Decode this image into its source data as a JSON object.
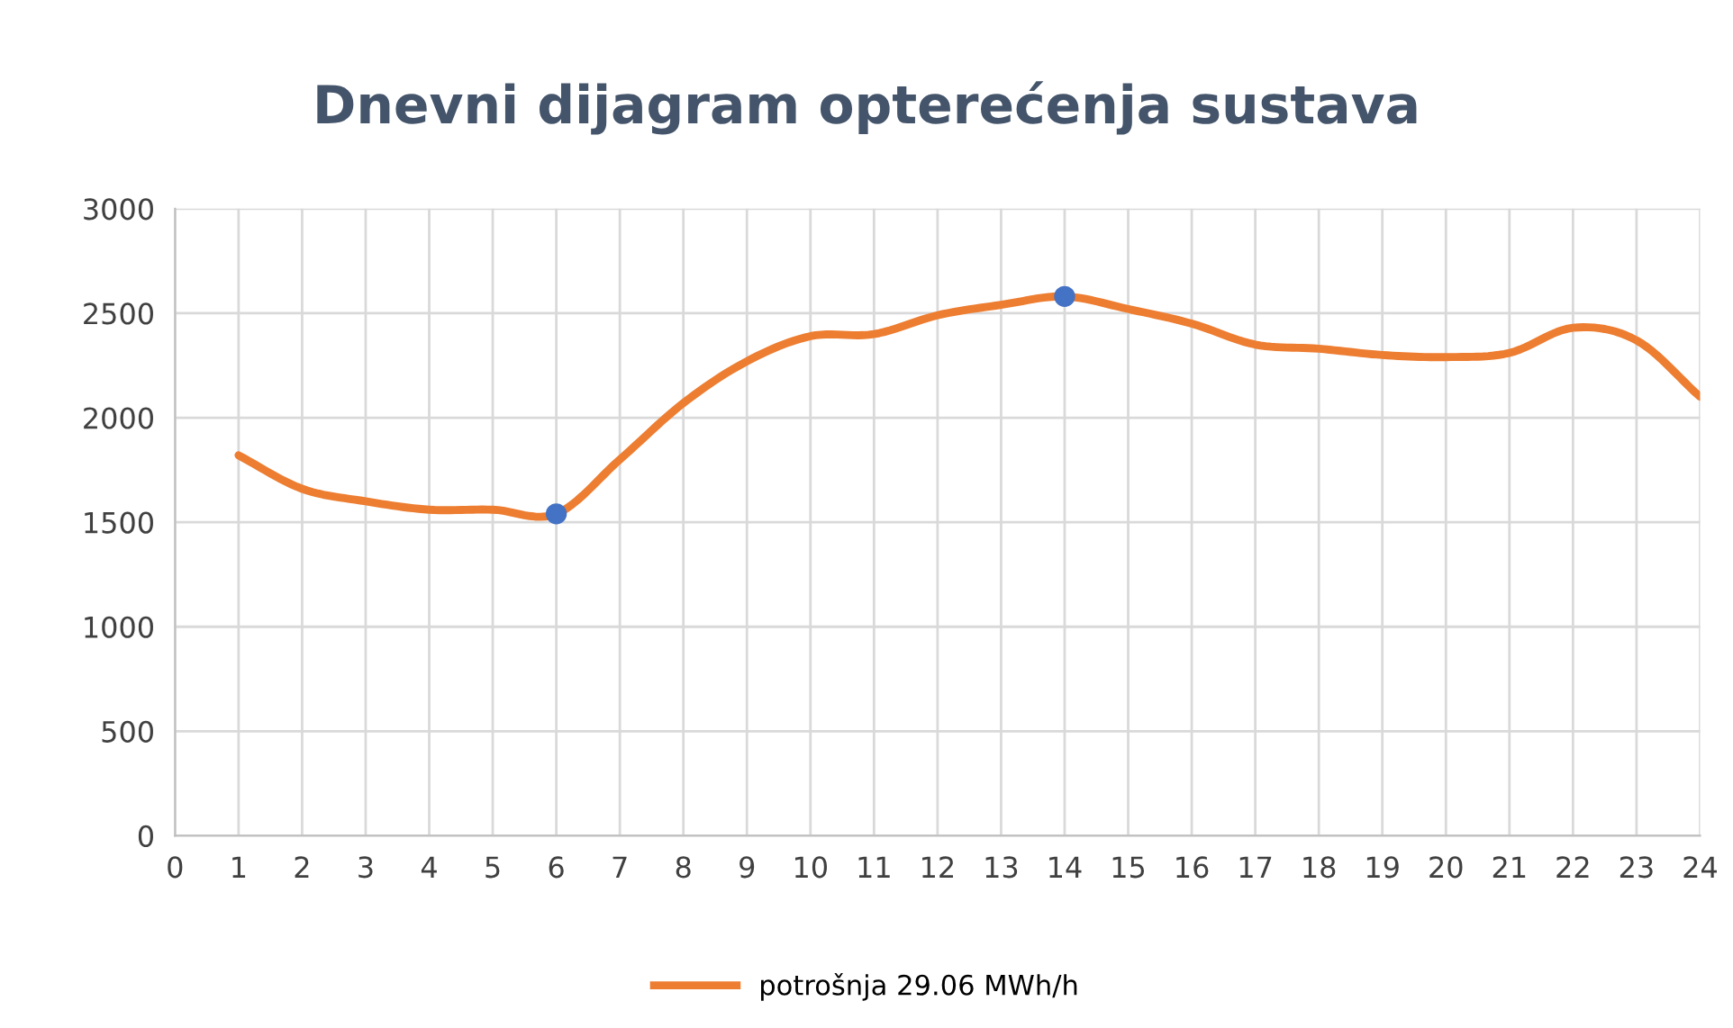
{
  "chart_data": {
    "type": "line",
    "title": "Dnevni dijagram opterećenja sustava",
    "x": [
      1,
      2,
      3,
      4,
      5,
      6,
      7,
      8,
      9,
      10,
      11,
      12,
      13,
      14,
      15,
      16,
      17,
      18,
      19,
      20,
      21,
      22,
      23,
      24
    ],
    "series": [
      {
        "name": "potrošnja 29.06 MWh/h",
        "color": "#ed7d31",
        "values": [
          1820,
          1660,
          1600,
          1560,
          1560,
          1540,
          1800,
          2070,
          2270,
          2390,
          2400,
          2490,
          2540,
          2580,
          2520,
          2450,
          2350,
          2330,
          2300,
          2290,
          2310,
          2430,
          2370,
          2100
        ]
      },
      {
        "type": "scatter",
        "marker": "circle",
        "color": "#4472c4",
        "x": [
          6,
          14
        ],
        "values": [
          1540,
          2580
        ]
      }
    ],
    "xlim": [
      0,
      24
    ],
    "xticks": [
      0,
      1,
      2,
      3,
      4,
      5,
      6,
      7,
      8,
      9,
      10,
      11,
      12,
      13,
      14,
      15,
      16,
      17,
      18,
      19,
      20,
      21,
      22,
      23,
      24
    ],
    "ylim": [
      0,
      3000
    ],
    "yticks": [
      0,
      500,
      1000,
      1500,
      2000,
      2500,
      3000
    ],
    "grid": true,
    "legend": "bottom",
    "marker": "none",
    "line_style": "solid"
  }
}
